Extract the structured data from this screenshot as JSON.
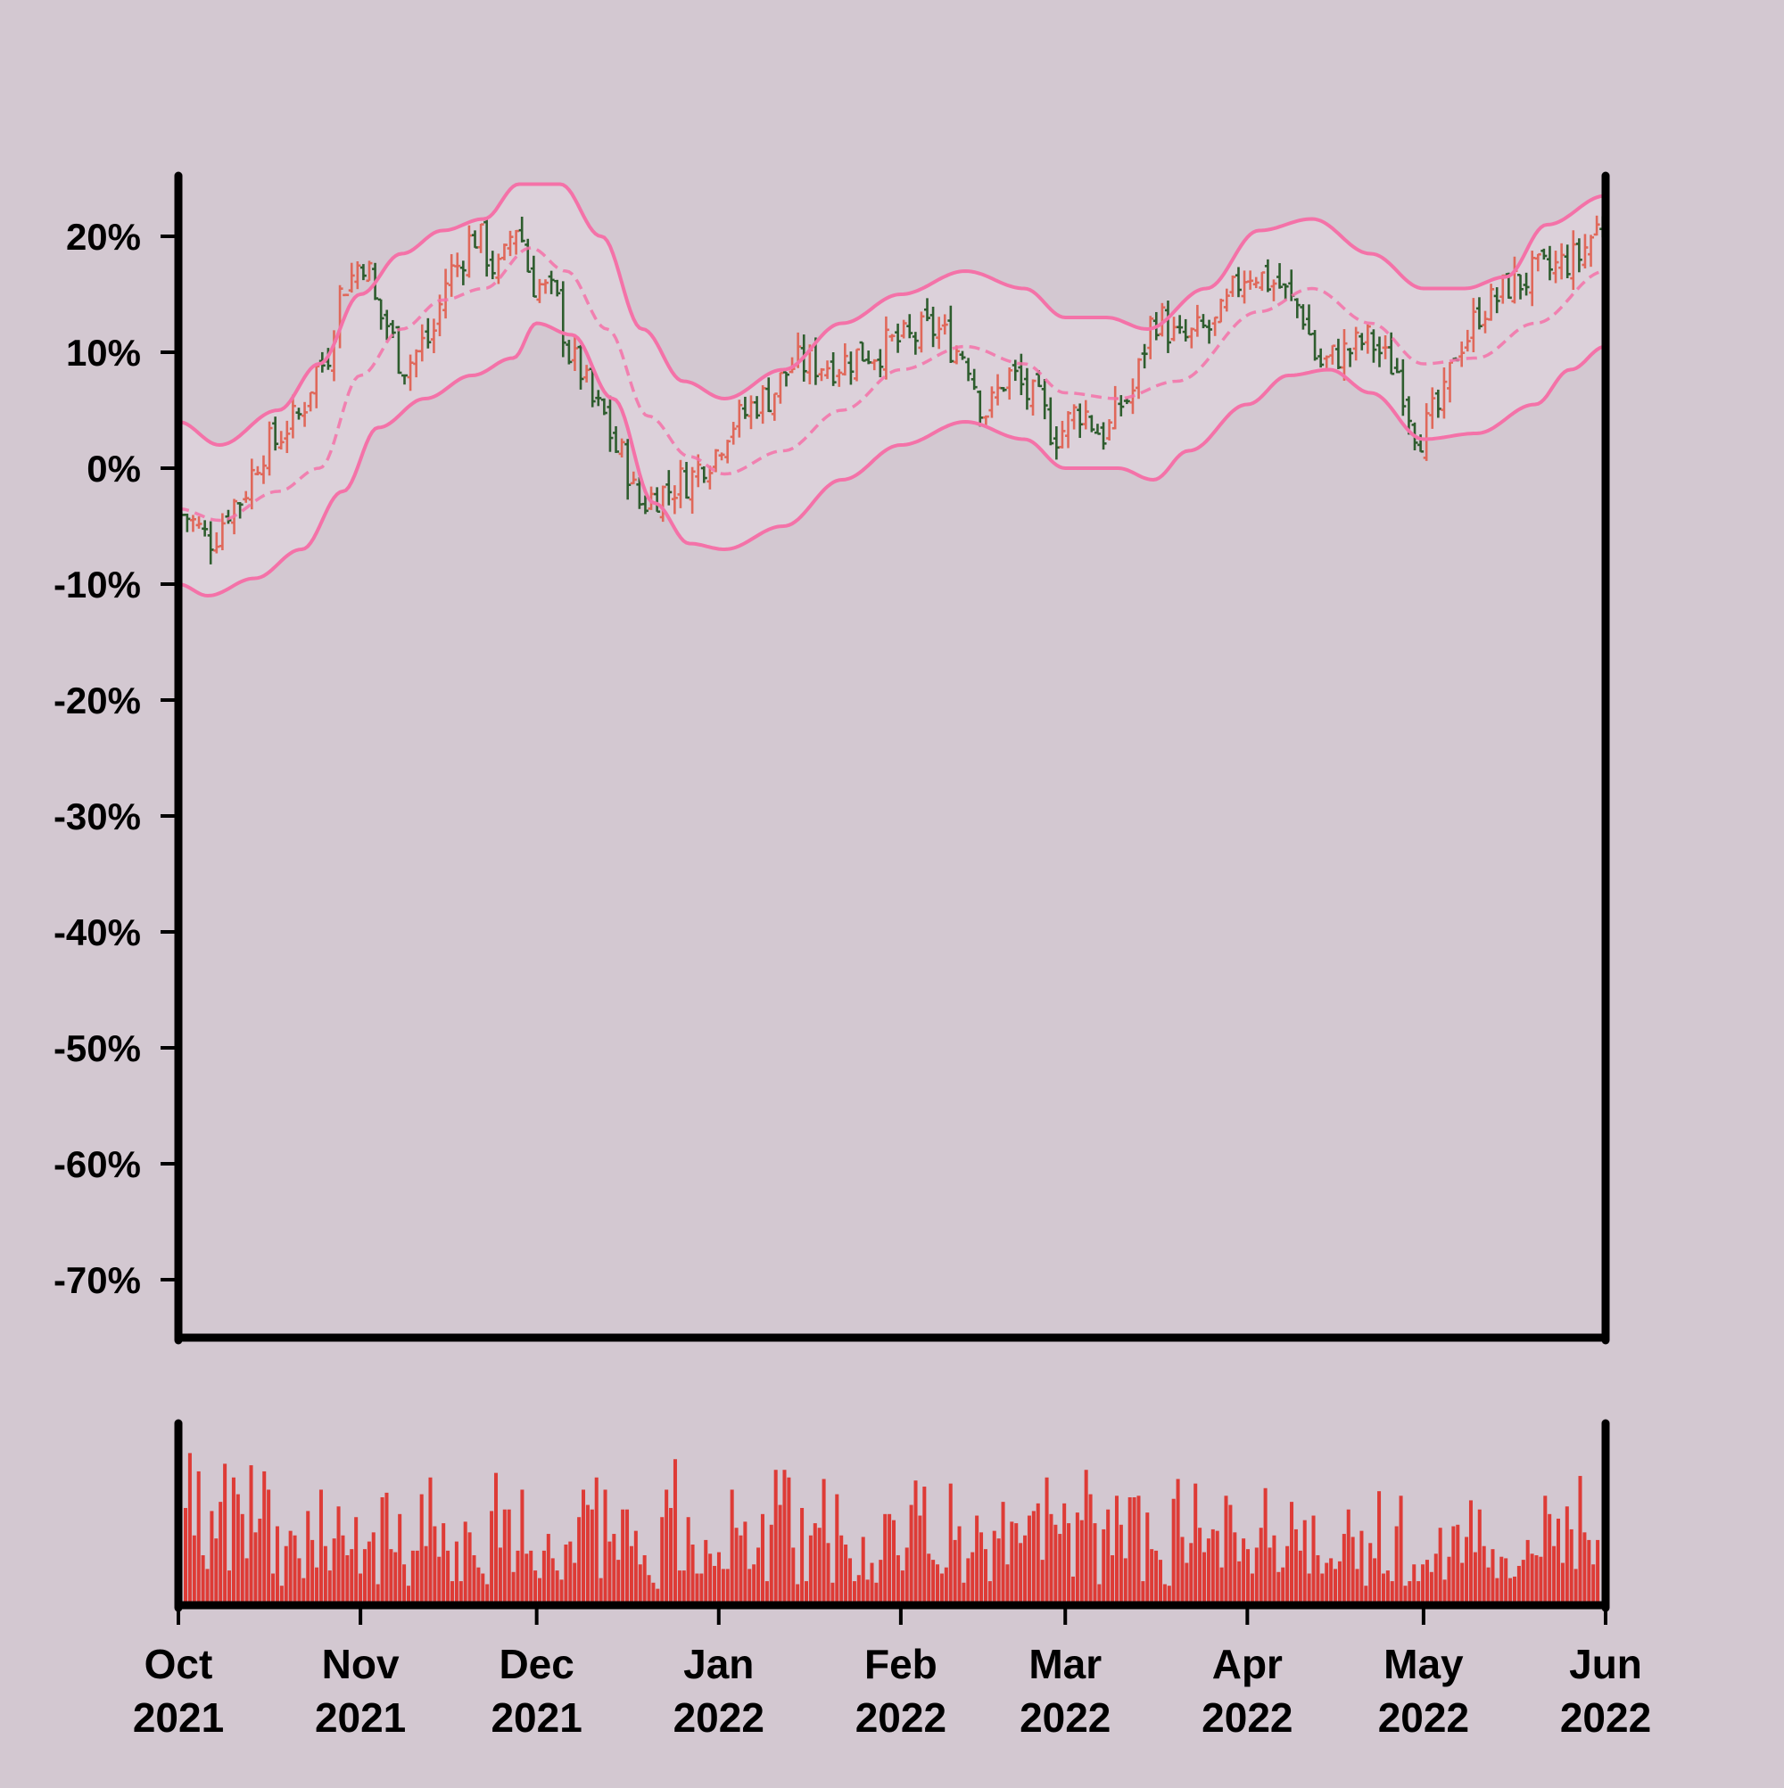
{
  "chart_data": {
    "type": "ohlc",
    "price_panel": {
      "ylim": [
        -75,
        25
      ],
      "yticks": [
        20,
        10,
        0,
        -10,
        -20,
        -30,
        -40,
        -50,
        -60,
        -70
      ],
      "ytick_labels": [
        "20%",
        "10%",
        "0%",
        "-10%",
        "-20%",
        "-30%",
        "-40%",
        "-50%",
        "-60%",
        "-70%"
      ],
      "grid": false
    },
    "x_axis": {
      "range": [
        "2021-10-01",
        "2022-06-01"
      ],
      "ticks": [
        {
          "date": "2021-10-01",
          "month": "Oct",
          "year": "2021"
        },
        {
          "date": "2021-11-01",
          "month": "Nov",
          "year": "2021"
        },
        {
          "date": "2021-12-01",
          "month": "Dec",
          "year": "2021"
        },
        {
          "date": "2022-01-01",
          "month": "Jan",
          "year": "2022"
        },
        {
          "date": "2022-02-01",
          "month": "Feb",
          "year": "2022"
        },
        {
          "date": "2022-03-01",
          "month": "Mar",
          "year": "2022"
        },
        {
          "date": "2022-04-01",
          "month": "Apr",
          "year": "2022"
        },
        {
          "date": "2022-05-01",
          "month": "May",
          "year": "2022"
        },
        {
          "date": "2022-06-01",
          "month": "Jun",
          "year": "2022"
        }
      ]
    },
    "close_anchors": [
      {
        "date": "2021-10-01",
        "value": -4
      },
      {
        "date": "2021-10-06",
        "value": -6
      },
      {
        "date": "2021-10-10",
        "value": -3
      },
      {
        "date": "2021-10-16",
        "value": 2
      },
      {
        "date": "2021-10-20",
        "value": 4
      },
      {
        "date": "2021-10-25",
        "value": 9
      },
      {
        "date": "2021-10-29",
        "value": 16
      },
      {
        "date": "2021-11-01",
        "value": 18
      },
      {
        "date": "2021-11-04",
        "value": 13
      },
      {
        "date": "2021-11-08",
        "value": 9
      },
      {
        "date": "2021-11-12",
        "value": 11
      },
      {
        "date": "2021-11-16",
        "value": 17
      },
      {
        "date": "2021-11-20",
        "value": 20
      },
      {
        "date": "2021-11-24",
        "value": 17
      },
      {
        "date": "2021-11-27",
        "value": 21
      },
      {
        "date": "2021-11-30",
        "value": 16
      },
      {
        "date": "2021-12-03",
        "value": 15
      },
      {
        "date": "2021-12-07",
        "value": 9
      },
      {
        "date": "2021-12-11",
        "value": 5
      },
      {
        "date": "2021-12-15",
        "value": 1
      },
      {
        "date": "2021-12-18",
        "value": -3
      },
      {
        "date": "2021-12-22",
        "value": -2
      },
      {
        "date": "2021-12-26",
        "value": -1
      },
      {
        "date": "2021-12-30",
        "value": 1
      },
      {
        "date": "2022-01-03",
        "value": 4
      },
      {
        "date": "2022-01-08",
        "value": 6
      },
      {
        "date": "2022-01-14",
        "value": 9
      },
      {
        "date": "2022-01-20",
        "value": 9
      },
      {
        "date": "2022-01-26",
        "value": 10
      },
      {
        "date": "2022-02-01",
        "value": 11
      },
      {
        "date": "2022-02-06",
        "value": 12
      },
      {
        "date": "2022-02-11",
        "value": 10
      },
      {
        "date": "2022-02-15",
        "value": 5
      },
      {
        "date": "2022-02-19",
        "value": 8
      },
      {
        "date": "2022-02-23",
        "value": 6
      },
      {
        "date": "2022-02-27",
        "value": 3
      },
      {
        "date": "2022-03-03",
        "value": 5
      },
      {
        "date": "2022-03-07",
        "value": 3
      },
      {
        "date": "2022-03-11",
        "value": 6
      },
      {
        "date": "2022-03-16",
        "value": 13
      },
      {
        "date": "2022-03-20",
        "value": 11
      },
      {
        "date": "2022-03-25",
        "value": 12
      },
      {
        "date": "2022-04-01",
        "value": 17
      },
      {
        "date": "2022-04-05",
        "value": 16
      },
      {
        "date": "2022-04-09",
        "value": 14
      },
      {
        "date": "2022-04-13",
        "value": 9
      },
      {
        "date": "2022-04-17",
        "value": 10
      },
      {
        "date": "2022-04-21",
        "value": 11
      },
      {
        "date": "2022-04-25",
        "value": 9
      },
      {
        "date": "2022-04-30",
        "value": 3
      },
      {
        "date": "2022-05-03",
        "value": 5
      },
      {
        "date": "2022-05-07",
        "value": 11
      },
      {
        "date": "2022-05-11",
        "value": 14
      },
      {
        "date": "2022-05-16",
        "value": 16
      },
      {
        "date": "2022-05-21",
        "value": 17
      },
      {
        "date": "2022-05-26",
        "value": 18
      },
      {
        "date": "2022-05-31",
        "value": 21
      }
    ],
    "bands": {
      "style": "bollinger",
      "upper": [
        {
          "date": "2021-10-01",
          "value": 4
        },
        {
          "date": "2021-10-08",
          "value": 2
        },
        {
          "date": "2021-10-18",
          "value": 5
        },
        {
          "date": "2021-10-25",
          "value": 9
        },
        {
          "date": "2021-11-01",
          "value": 15
        },
        {
          "date": "2021-11-08",
          "value": 18.5
        },
        {
          "date": "2021-11-15",
          "value": 20.5
        },
        {
          "date": "2021-11-22",
          "value": 21.5
        },
        {
          "date": "2021-11-28",
          "value": 24.5
        },
        {
          "date": "2021-12-05",
          "value": 24.5
        },
        {
          "date": "2021-12-12",
          "value": 20
        },
        {
          "date": "2021-12-19",
          "value": 12
        },
        {
          "date": "2021-12-26",
          "value": 7.5
        },
        {
          "date": "2022-01-02",
          "value": 6
        },
        {
          "date": "2022-01-12",
          "value": 8.5
        },
        {
          "date": "2022-01-22",
          "value": 12.5
        },
        {
          "date": "2022-02-01",
          "value": 15
        },
        {
          "date": "2022-02-12",
          "value": 17
        },
        {
          "date": "2022-02-22",
          "value": 15.5
        },
        {
          "date": "2022-03-01",
          "value": 13
        },
        {
          "date": "2022-03-08",
          "value": 13
        },
        {
          "date": "2022-03-15",
          "value": 12
        },
        {
          "date": "2022-03-25",
          "value": 15.5
        },
        {
          "date": "2022-04-03",
          "value": 20.5
        },
        {
          "date": "2022-04-12",
          "value": 21.5
        },
        {
          "date": "2022-04-22",
          "value": 18.5
        },
        {
          "date": "2022-05-01",
          "value": 15.5
        },
        {
          "date": "2022-05-08",
          "value": 15.5
        },
        {
          "date": "2022-05-15",
          "value": 16.5
        },
        {
          "date": "2022-05-22",
          "value": 21
        },
        {
          "date": "2022-06-01",
          "value": 23.5
        }
      ],
      "middle": [
        {
          "date": "2021-10-01",
          "value": -3.5
        },
        {
          "date": "2021-10-08",
          "value": -4.5
        },
        {
          "date": "2021-10-18",
          "value": -2
        },
        {
          "date": "2021-10-25",
          "value": 0
        },
        {
          "date": "2021-11-01",
          "value": 8
        },
        {
          "date": "2021-11-08",
          "value": 12
        },
        {
          "date": "2021-11-15",
          "value": 14.5
        },
        {
          "date": "2021-11-22",
          "value": 15.5
        },
        {
          "date": "2021-11-30",
          "value": 19
        },
        {
          "date": "2021-12-06",
          "value": 17
        },
        {
          "date": "2021-12-13",
          "value": 12
        },
        {
          "date": "2021-12-20",
          "value": 4.5
        },
        {
          "date": "2021-12-27",
          "value": 1
        },
        {
          "date": "2022-01-02",
          "value": -0.5
        },
        {
          "date": "2022-01-12",
          "value": 1.5
        },
        {
          "date": "2022-01-22",
          "value": 5
        },
        {
          "date": "2022-02-01",
          "value": 8.5
        },
        {
          "date": "2022-02-12",
          "value": 10.5
        },
        {
          "date": "2022-02-22",
          "value": 9
        },
        {
          "date": "2022-03-01",
          "value": 6.5
        },
        {
          "date": "2022-03-10",
          "value": 6
        },
        {
          "date": "2022-03-20",
          "value": 7.5
        },
        {
          "date": "2022-04-03",
          "value": 13.5
        },
        {
          "date": "2022-04-12",
          "value": 15.5
        },
        {
          "date": "2022-04-22",
          "value": 12.5
        },
        {
          "date": "2022-05-01",
          "value": 9
        },
        {
          "date": "2022-05-10",
          "value": 9.5
        },
        {
          "date": "2022-05-20",
          "value": 12.5
        },
        {
          "date": "2022-06-01",
          "value": 17
        }
      ],
      "lower": [
        {
          "date": "2021-10-01",
          "value": -10
        },
        {
          "date": "2021-10-06",
          "value": -11
        },
        {
          "date": "2021-10-14",
          "value": -9.5
        },
        {
          "date": "2021-10-22",
          "value": -7
        },
        {
          "date": "2021-10-29",
          "value": -2
        },
        {
          "date": "2021-11-04",
          "value": 3.5
        },
        {
          "date": "2021-11-12",
          "value": 6
        },
        {
          "date": "2021-11-20",
          "value": 8
        },
        {
          "date": "2021-11-27",
          "value": 9.5
        },
        {
          "date": "2021-12-01",
          "value": 12.5
        },
        {
          "date": "2021-12-07",
          "value": 11.5
        },
        {
          "date": "2021-12-14",
          "value": 6
        },
        {
          "date": "2021-12-21",
          "value": -3
        },
        {
          "date": "2021-12-27",
          "value": -6.5
        },
        {
          "date": "2022-01-02",
          "value": -7
        },
        {
          "date": "2022-01-12",
          "value": -5
        },
        {
          "date": "2022-01-22",
          "value": -1
        },
        {
          "date": "2022-02-01",
          "value": 2
        },
        {
          "date": "2022-02-12",
          "value": 4
        },
        {
          "date": "2022-02-22",
          "value": 2.5
        },
        {
          "date": "2022-03-01",
          "value": 0
        },
        {
          "date": "2022-03-10",
          "value": 0
        },
        {
          "date": "2022-03-16",
          "value": -1
        },
        {
          "date": "2022-03-22",
          "value": 1.5
        },
        {
          "date": "2022-04-01",
          "value": 5.5
        },
        {
          "date": "2022-04-08",
          "value": 8
        },
        {
          "date": "2022-04-15",
          "value": 8.5
        },
        {
          "date": "2022-04-22",
          "value": 6.5
        },
        {
          "date": "2022-05-01",
          "value": 2.5
        },
        {
          "date": "2022-05-10",
          "value": 3
        },
        {
          "date": "2022-05-20",
          "value": 5.5
        },
        {
          "date": "2022-05-26",
          "value": 8.5
        },
        {
          "date": "2022-06-01",
          "value": 10.5
        }
      ]
    },
    "volume": {
      "type": "bar",
      "relative_levels": [
        0.62,
        0.98,
        0.44,
        0.86,
        0.31,
        0.22,
        0.6,
        0.42,
        0.66,
        0.91,
        0.21,
        0.82,
        0.71,
        0.58,
        0.29,
        0.9,
        0.46,
        0.55,
        0.86,
        0.74,
        0.19,
        0.5,
        0.11,
        0.37,
        0.47,
        0.44,
        0.29,
        0.16,
        0.6,
        0.41,
        0.23,
        0.74,
        0.37,
        0.21,
        0.42,
        0.63,
        0.44,
        0.31,
        0.35,
        0.56,
        0.19,
        0.35,
        0.4,
        0.46,
        0.12,
        0.69,
        0.72,
        0.35,
        0.33,
        0.58,
        0.25,
        0.11,
        0.34,
        0.34,
        0.71,
        0.37,
        0.82,
        0.5,
        0.3,
        0.52,
        0.34,
        0.14,
        0.4,
        0.14,
        0.53,
        0.46,
        0.31,
        0.23,
        0.19,
        0.12,
        0.6,
        0.85,
        0.36,
        0.61,
        0.61,
        0.2,
        0.34,
        0.74,
        0.32,
        0.34,
        0.21,
        0.16,
        0.34,
        0.45,
        0.29,
        0.21,
        0.15,
        0.38,
        0.4,
        0.26,
        0.56,
        0.74,
        0.64,
        0.61,
        0.82,
        0.16,
        0.74,
        0.4,
        0.45,
        0.28,
        0.61,
        0.61,
        0.37,
        0.47,
        0.25,
        0.31,
        0.18,
        0.13,
        0.09,
        0.56,
        0.74,
        0.62,
        0.94,
        0.21,
        0.21,
        0.56,
        0.38,
        0.19,
        0.19,
        0.41,
        0.32,
        0.24,
        0.33,
        0.22,
        0.22,
        0.74,
        0.49,
        0.44,
        0.53,
        0.22,
        0.25,
        0.36,
        0.58,
        0.14,
        0.51,
        0.87,
        0.64,
        0.87,
        0.82,
        0.36,
        0.12,
        0.62,
        0.14,
        0.44,
        0.52,
        0.49,
        0.81,
        0.39,
        0.13,
        0.71,
        0.44,
        0.38,
        0.29,
        0.14,
        0.18,
        0.43,
        0.15,
        0.26,
        0.13,
        0.28,
        0.58,
        0.58,
        0.54,
        0.31,
        0.21,
        0.36,
        0.64,
        0.8,
        0.57,
        0.76,
        0.32,
        0.28,
        0.25,
        0.19,
        0.23,
        0.78,
        0.41,
        0.5,
        0.13,
        0.29,
        0.33,
        0.57,
        0.46,
        0.35,
        0.14,
        0.47,
        0.42,
        0.66,
        0.25,
        0.53,
        0.52,
        0.39,
        0.44,
        0.57,
        0.6,
        0.65,
        0.28,
        0.82,
        0.58,
        0.51,
        0.45,
        0.65,
        0.52,
        0.17,
        0.59,
        0.54,
        0.87,
        0.71,
        0.52,
        0.12,
        0.48,
        0.61,
        0.31,
        0.7,
        0.51,
        0.29,
        0.69,
        0.69,
        0.7,
        0.14,
        0.59,
        0.35,
        0.34,
        0.28,
        0.12,
        0.11,
        0.68,
        0.81,
        0.43,
        0.26,
        0.39,
        0.78,
        0.49,
        0.33,
        0.42,
        0.48,
        0.47,
        0.23,
        0.7,
        0.64,
        0.46,
        0.27,
        0.42,
        0.35,
        0.19,
        0.36,
        0.49,
        0.75,
        0.36,
        0.44,
        0.2,
        0.23,
        0.37,
        0.66,
        0.48,
        0.34,
        0.54,
        0.19,
        0.57,
        0.31,
        0.19,
        0.26,
        0.29,
        0.22,
        0.27,
        0.45,
        0.61,
        0.43,
        0.22,
        0.47,
        0.11,
        0.39,
        0.29,
        0.73,
        0.19,
        0.21,
        0.14,
        0.5,
        0.7,
        0.11,
        0.14,
        0.25,
        0.14,
        0.25,
        0.28,
        0.2,
        0.32,
        0.49,
        0.15,
        0.3,
        0.5,
        0.51,
        0.26,
        0.43,
        0.67,
        0.33,
        0.61,
        0.37,
        0.23,
        0.35,
        0.16,
        0.3,
        0.29,
        0.16,
        0.17,
        0.24,
        0.28,
        0.41,
        0.32,
        0.31,
        0.3,
        0.7,
        0.58,
        0.37,
        0.55,
        0.26,
        0.63,
        0.48,
        0.22,
        0.83,
        0.46,
        0.41,
        0.25,
        0.41
      ]
    }
  },
  "colors": {
    "background": "#d3c8d1",
    "band_line": "#f472a8",
    "band_fill": "#ddd2dc",
    "candle_up": "#e0685a",
    "candle_down": "#2e5d2e",
    "volume_bar": "#de3b36",
    "axis": "#000000"
  }
}
